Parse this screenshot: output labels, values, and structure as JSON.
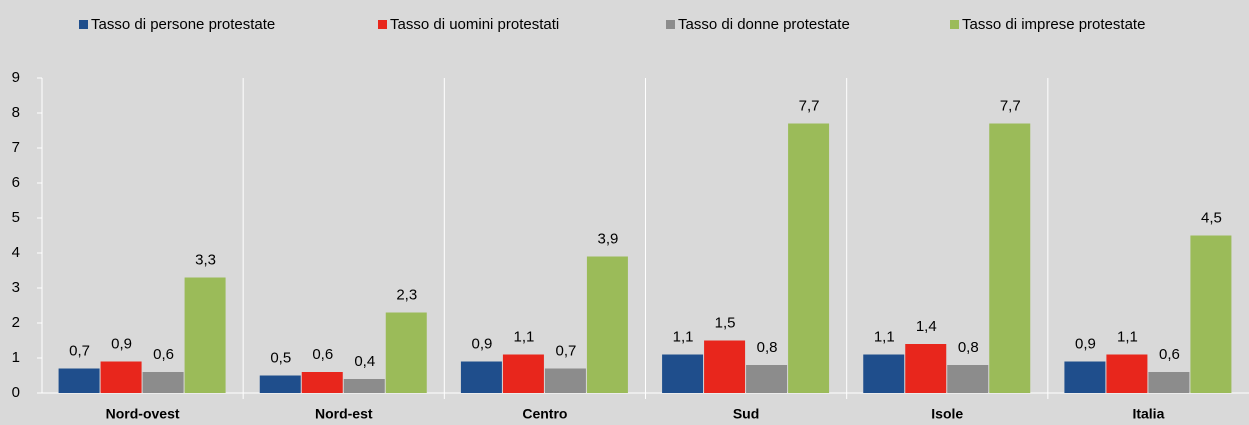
{
  "chart_data": {
    "type": "bar",
    "categories": [
      "Nord-ovest",
      "Nord-est",
      "Centro",
      "Sud",
      "Isole",
      "Italia"
    ],
    "series": [
      {
        "name": "Tasso di persone protestate",
        "color": "#1f4e8c",
        "values": [
          0.7,
          0.5,
          0.9,
          1.1,
          1.1,
          0.9
        ],
        "value_labels": [
          "0,7",
          "0,5",
          "0,9",
          "1,1",
          "1,1",
          "0,9"
        ]
      },
      {
        "name": "Tasso di uomini protestati",
        "color": "#e8261c",
        "values": [
          0.9,
          0.6,
          1.1,
          1.5,
          1.4,
          1.1
        ],
        "value_labels": [
          "0,9",
          "0,6",
          "1,1",
          "1,5",
          "1,4",
          "1,1"
        ]
      },
      {
        "name": "Tasso di donne protestate",
        "color": "#8c8c8c",
        "values": [
          0.6,
          0.4,
          0.7,
          0.8,
          0.8,
          0.6
        ],
        "value_labels": [
          "0,6",
          "0,4",
          "0,7",
          "0,8",
          "0,8",
          "0,6"
        ]
      },
      {
        "name": "Tasso di imprese protestate",
        "color": "#9bbb59",
        "values": [
          3.3,
          2.3,
          3.9,
          7.7,
          7.7,
          4.5
        ],
        "value_labels": [
          "3,3",
          "2,3",
          "3,9",
          "7,7",
          "7,7",
          "4,5"
        ]
      }
    ],
    "ylim": [
      0,
      9
    ],
    "yticks": [
      0,
      1,
      2,
      3,
      4,
      5,
      6,
      7,
      8,
      9
    ],
    "legend": "top"
  }
}
